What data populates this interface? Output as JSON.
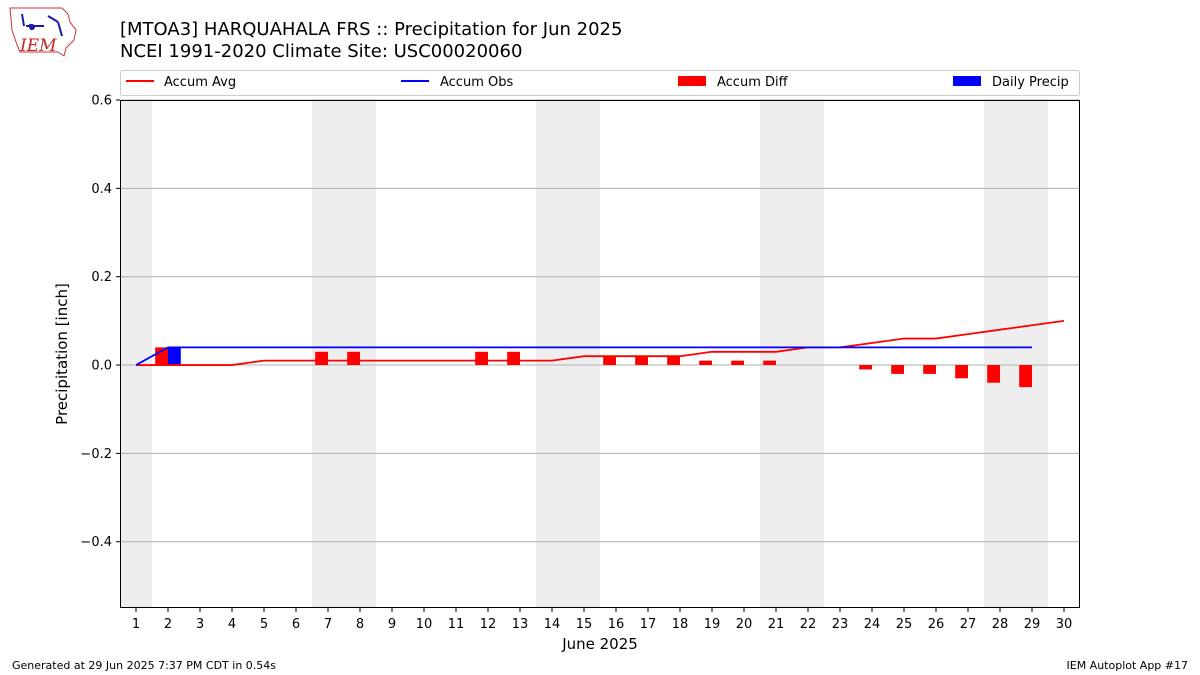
{
  "header": {
    "logo_text": "IEM",
    "title_line1": "[MTOA3] HARQUAHALA FRS :: Precipitation for Jun 2025",
    "title_line2": "NCEI 1991-2020 Climate Site: USC00020060"
  },
  "footer": {
    "generated": "Generated at 29 Jun 2025 7:37 PM CDT in 0.54s",
    "app": "IEM Autoplot App #17"
  },
  "colors": {
    "avg": "#ff0000",
    "obs": "#0000ff",
    "diff": "#ff0000",
    "daily": "#0000ff",
    "weekend": "#eeeeee",
    "grid": "#b0b0b0"
  },
  "chart_data": {
    "type": "bar",
    "xlabel": "June 2025",
    "ylabel": "Precipitation [inch]",
    "xlim": [
      0.5,
      30.5
    ],
    "ylim": [
      -0.55,
      0.6
    ],
    "yticks": [
      0.6,
      0.4,
      0.2,
      0.0,
      -0.2,
      -0.4
    ],
    "ytick_labels": [
      "0.6",
      "0.4",
      "0.2",
      "0.0",
      "−0.2",
      "−0.4"
    ],
    "days": [
      1,
      2,
      3,
      4,
      5,
      6,
      7,
      8,
      9,
      10,
      11,
      12,
      13,
      14,
      15,
      16,
      17,
      18,
      19,
      20,
      21,
      22,
      23,
      24,
      25,
      26,
      27,
      28,
      29,
      30
    ],
    "weekend_spans": [
      [
        0.5,
        1.5
      ],
      [
        6.5,
        8.5
      ],
      [
        13.5,
        15.5
      ],
      [
        20.5,
        22.5
      ],
      [
        27.5,
        29.5
      ]
    ],
    "grid": "horizontal",
    "legend_position": "top",
    "series": [
      {
        "name": "Accum Avg",
        "kind": "line",
        "days": [
          1,
          2,
          3,
          4,
          5,
          6,
          7,
          8,
          9,
          10,
          11,
          12,
          13,
          14,
          15,
          16,
          17,
          18,
          19,
          20,
          21,
          22,
          23,
          24,
          25,
          26,
          27,
          28,
          29,
          30
        ],
        "values": [
          0.0,
          0.0,
          0.0,
          0.0,
          0.01,
          0.01,
          0.01,
          0.01,
          0.01,
          0.01,
          0.01,
          0.01,
          0.01,
          0.01,
          0.02,
          0.02,
          0.02,
          0.02,
          0.03,
          0.03,
          0.03,
          0.04,
          0.04,
          0.05,
          0.06,
          0.06,
          0.07,
          0.08,
          0.09,
          0.1
        ]
      },
      {
        "name": "Accum Obs",
        "kind": "line",
        "days": [
          1,
          2,
          3,
          4,
          5,
          6,
          7,
          8,
          9,
          10,
          11,
          12,
          13,
          14,
          15,
          16,
          17,
          18,
          19,
          20,
          21,
          22,
          23,
          24,
          25,
          26,
          27,
          28,
          29
        ],
        "values": [
          0.0,
          0.04,
          0.04,
          0.04,
          0.04,
          0.04,
          0.04,
          0.04,
          0.04,
          0.04,
          0.04,
          0.04,
          0.04,
          0.04,
          0.04,
          0.04,
          0.04,
          0.04,
          0.04,
          0.04,
          0.04,
          0.04,
          0.04,
          0.04,
          0.04,
          0.04,
          0.04,
          0.04,
          0.04
        ]
      },
      {
        "name": "Accum Diff",
        "kind": "bar",
        "days": [
          2,
          7,
          8,
          12,
          13,
          16,
          17,
          18,
          19,
          20,
          21,
          24,
          25,
          26,
          27,
          28,
          29
        ],
        "values": [
          0.04,
          0.03,
          0.03,
          0.03,
          0.03,
          0.02,
          0.02,
          0.02,
          0.01,
          0.01,
          0.01,
          -0.01,
          -0.02,
          -0.02,
          -0.03,
          -0.04,
          -0.05
        ]
      },
      {
        "name": "Daily Precip",
        "kind": "bar",
        "days": [
          2
        ],
        "values": [
          0.04
        ]
      }
    ]
  }
}
